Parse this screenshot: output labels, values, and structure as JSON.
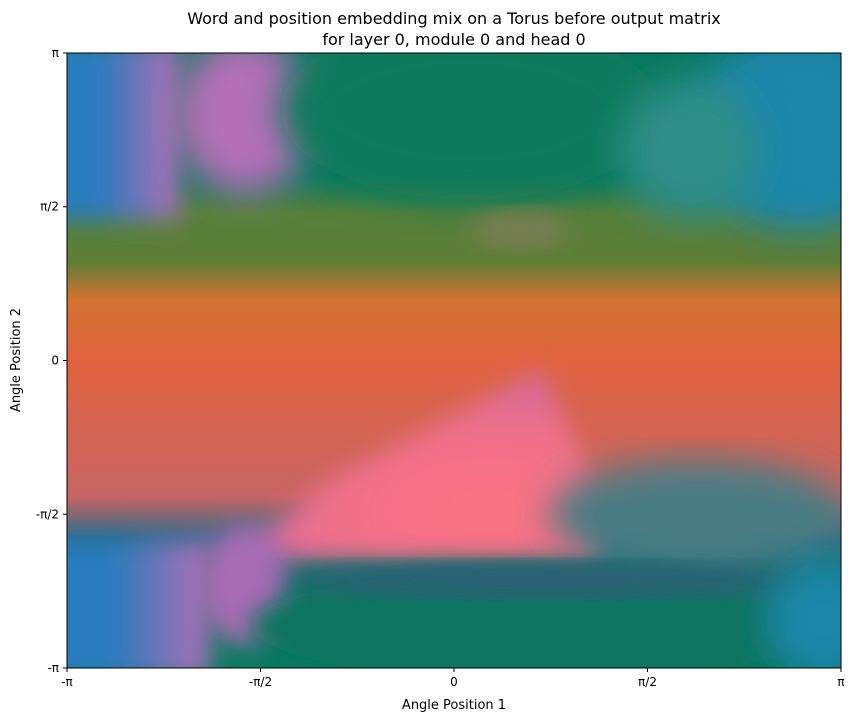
{
  "chart_data": {
    "type": "heatmap",
    "title": "Word and position embedding mix on a Torus before output matrix",
    "subtitle": "for layer 0, module 0 and head 0",
    "xlabel": "Angle Position 1",
    "ylabel": "Angle Position 2",
    "xlim": [
      -3.14159,
      3.14159
    ],
    "ylim": [
      -3.14159,
      3.14159
    ],
    "x_ticks": [
      {
        "value": -3.14159,
        "label": "-π"
      },
      {
        "value": -1.5708,
        "label": "-π/2"
      },
      {
        "value": 0,
        "label": "0"
      },
      {
        "value": 1.5708,
        "label": "π/2"
      },
      {
        "value": 3.14159,
        "label": "π"
      }
    ],
    "y_ticks": [
      {
        "value": -3.14159,
        "label": "-π"
      },
      {
        "value": -1.5708,
        "label": "-π/2"
      },
      {
        "value": 0,
        "label": "0"
      },
      {
        "value": 1.5708,
        "label": "π/2"
      },
      {
        "value": 3.14159,
        "label": "π"
      }
    ],
    "grid": false,
    "legend": "none",
    "colors": {
      "blue": "#2b7bbd",
      "purple": "#b36fb6",
      "teal": "#087a5f",
      "olive": "#55803a",
      "orange": "#d2722f",
      "red_orange": "#e0633f",
      "pink": "#f87383",
      "slate": "#2c6a84"
    },
    "bands_by_y": [
      {
        "y": 3.14,
        "color": "teal"
      },
      {
        "y": 1.57,
        "color": "olive"
      },
      {
        "y": 0.8,
        "color": "orange"
      },
      {
        "y": 0,
        "color": "red_orange"
      },
      {
        "y": -1.57,
        "color": "red_orange"
      },
      {
        "y": -2.36,
        "color": "teal"
      },
      {
        "y": -3.14,
        "color": "teal"
      }
    ],
    "regions": [
      {
        "name": "left-edge",
        "x_range": [
          -3.14,
          -2.2
        ],
        "y_range": [
          -3.14,
          3.14
        ],
        "colors": [
          "blue",
          "purple"
        ],
        "excluding_y": [
          0.3,
          1.6
        ]
      },
      {
        "name": "top-left",
        "x_range": [
          -2.2,
          -1.0
        ],
        "y_range": [
          2.0,
          3.14
        ],
        "color": "purple"
      },
      {
        "name": "top-middle",
        "x_range": [
          -1.0,
          1.6
        ],
        "y_range": [
          1.8,
          3.14
        ],
        "color": "teal"
      },
      {
        "name": "top-right",
        "x_range": [
          1.6,
          3.14
        ],
        "y_range": [
          1.8,
          3.14
        ],
        "color": "blue"
      },
      {
        "name": "middle-triangle",
        "x_range": [
          -1.5,
          1.0
        ],
        "y_range": [
          -1.6,
          0.0
        ],
        "color": "pink"
      },
      {
        "name": "bottom-ellipse",
        "x_range": [
          -1.6,
          2.9
        ],
        "y_range": [
          -3.14,
          -2.3
        ],
        "color": "teal"
      },
      {
        "name": "bottom-right",
        "x_range": [
          1.6,
          3.14
        ],
        "y_range": [
          -2.7,
          -1.6
        ],
        "color": "slate"
      }
    ]
  }
}
